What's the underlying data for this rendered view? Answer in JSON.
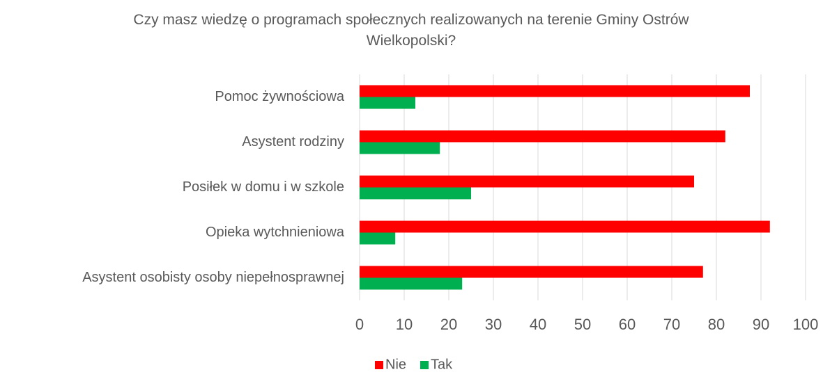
{
  "chart_data": {
    "type": "bar",
    "orientation": "horizontal",
    "title": "Czy masz wiedzę o programach społecznych realizowanych na terenie Gminy Ostrów Wielkopolski?",
    "categories": [
      "Pomoc żywnościowa",
      "Asystent rodziny",
      "Posiłek w domu i w szkole",
      "Opieka wytchnieniowa",
      "Asystent osobisty osoby niepełnosprawnej"
    ],
    "series": [
      {
        "name": "Nie",
        "color": "#ff0000",
        "values": [
          87.5,
          82,
          75,
          92,
          77
        ]
      },
      {
        "name": "Tak",
        "color": "#00b050",
        "values": [
          12.5,
          18,
          25,
          8,
          23
        ]
      }
    ],
    "xlim": [
      0,
      100
    ],
    "xticks": [
      0,
      10,
      20,
      30,
      40,
      50,
      60,
      70,
      80,
      90,
      100
    ],
    "grid": true,
    "legend": "bottom"
  }
}
